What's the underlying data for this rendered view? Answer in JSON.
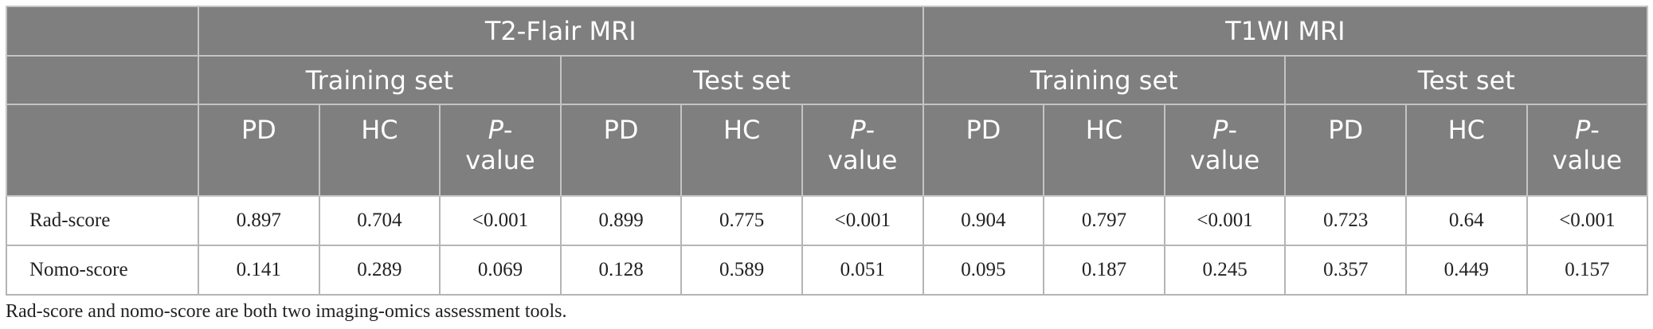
{
  "table": {
    "header": {
      "modalities": [
        "T2-Flair MRI",
        "T1WI MRI"
      ],
      "sets": [
        "Training set",
        "Test set",
        "Training set",
        "Test set"
      ],
      "columns": [
        "PD",
        "HC",
        {
          "italic": "P",
          "text": "-value"
        },
        "PD",
        "HC",
        {
          "italic": "P",
          "text": "-value"
        },
        "PD",
        "HC",
        {
          "italic": "P",
          "text": "-value"
        },
        "PD",
        "HC",
        {
          "italic": "P",
          "text": "-value"
        }
      ]
    },
    "rows": [
      {
        "label": "Rad-score",
        "values": [
          "0.897",
          "0.704",
          "<0.001",
          "0.899",
          "0.775",
          "<0.001",
          "0.904",
          "0.797",
          "<0.001",
          "0.723",
          "0.64",
          "<0.001"
        ]
      },
      {
        "label": "Nomo-score",
        "values": [
          "0.141",
          "0.289",
          "0.069",
          "0.128",
          "0.589",
          "0.051",
          "0.095",
          "0.187",
          "0.245",
          "0.357",
          "0.449",
          "0.157"
        ]
      }
    ]
  },
  "footnote": "Rad-score and nomo-score are both two imaging-omics assessment tools."
}
